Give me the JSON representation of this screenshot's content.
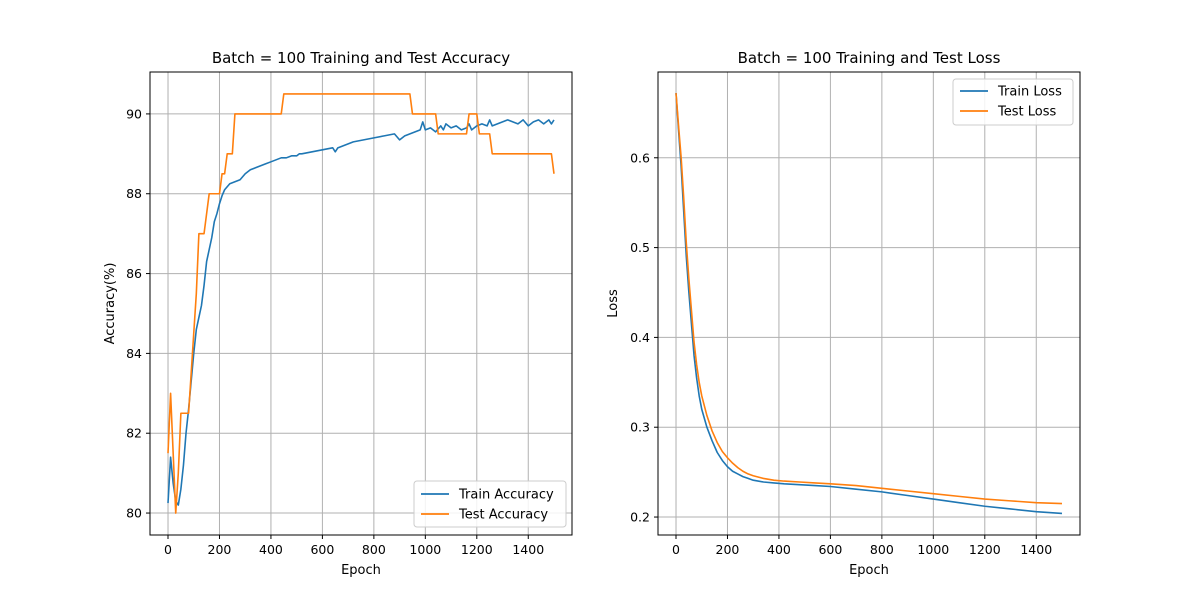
{
  "chart_data": [
    {
      "type": "line",
      "title": "Batch = 100 Training and Test Accuracy",
      "xlabel": "Epoch",
      "ylabel": "Accuracy(%)",
      "xlim": [
        -70,
        1570
      ],
      "ylim": [
        79.45,
        91.05
      ],
      "xticks": [
        "0",
        "200",
        "400",
        "600",
        "800",
        "1000",
        "1200",
        "1400"
      ],
      "yticks": [
        "80",
        "82",
        "84",
        "86",
        "88",
        "90"
      ],
      "grid": true,
      "legend": "lower right",
      "series": [
        {
          "name": "Train Accuracy",
          "color": "#1f77b4",
          "x": [
            0,
            10,
            20,
            30,
            40,
            50,
            60,
            70,
            80,
            90,
            100,
            110,
            120,
            130,
            140,
            150,
            160,
            170,
            180,
            190,
            200,
            210,
            220,
            240,
            260,
            280,
            300,
            320,
            340,
            360,
            380,
            400,
            420,
            440,
            460,
            480,
            500,
            510,
            520,
            560,
            600,
            640,
            650,
            660,
            680,
            700,
            720,
            760,
            800,
            840,
            880,
            900,
            920,
            940,
            960,
            980,
            990,
            1000,
            1020,
            1040,
            1060,
            1070,
            1080,
            1100,
            1120,
            1140,
            1160,
            1170,
            1180,
            1200,
            1220,
            1240,
            1250,
            1260,
            1280,
            1300,
            1320,
            1340,
            1360,
            1380,
            1400,
            1420,
            1440,
            1460,
            1480,
            1490,
            1500
          ],
          "y": [
            80.25,
            81.4,
            80.75,
            80.3,
            80.2,
            80.6,
            81.2,
            82.0,
            82.6,
            83.3,
            84.0,
            84.6,
            84.9,
            85.2,
            85.7,
            86.3,
            86.6,
            86.9,
            87.3,
            87.5,
            87.75,
            87.95,
            88.1,
            88.25,
            88.3,
            88.35,
            88.5,
            88.6,
            88.65,
            88.7,
            88.75,
            88.8,
            88.85,
            88.9,
            88.9,
            88.95,
            88.95,
            89.0,
            89.0,
            89.05,
            89.1,
            89.15,
            89.05,
            89.15,
            89.2,
            89.25,
            89.3,
            89.35,
            89.4,
            89.45,
            89.5,
            89.35,
            89.45,
            89.5,
            89.55,
            89.6,
            89.8,
            89.6,
            89.65,
            89.55,
            89.7,
            89.6,
            89.75,
            89.65,
            89.7,
            89.6,
            89.65,
            89.75,
            89.6,
            89.7,
            89.75,
            89.7,
            89.85,
            89.7,
            89.75,
            89.8,
            89.85,
            89.8,
            89.75,
            89.85,
            89.7,
            89.8,
            89.85,
            89.75,
            89.85,
            89.75,
            89.85
          ]
        },
        {
          "name": "Test Accuracy",
          "color": "#ff7f0e",
          "x": [
            0,
            10,
            20,
            30,
            40,
            50,
            60,
            70,
            80,
            90,
            100,
            110,
            120,
            130,
            140,
            150,
            160,
            170,
            180,
            190,
            200,
            210,
            220,
            230,
            240,
            250,
            260,
            270,
            280,
            290,
            300,
            320,
            340,
            360,
            380,
            400,
            420,
            440,
            450,
            460,
            500,
            600,
            700,
            800,
            900,
            940,
            950,
            990,
            1000,
            1040,
            1050,
            1100,
            1150,
            1160,
            1170,
            1200,
            1210,
            1250,
            1260,
            1300,
            1400,
            1490,
            1500
          ],
          "y": [
            81.5,
            83.0,
            81.5,
            80.0,
            81.0,
            82.5,
            82.5,
            82.5,
            82.5,
            83.5,
            84.5,
            85.5,
            87.0,
            87.0,
            87.0,
            87.5,
            88.0,
            88.0,
            88.0,
            88.0,
            88.0,
            88.5,
            88.5,
            89.0,
            89.0,
            89.0,
            90.0,
            90.0,
            90.0,
            90.0,
            90.0,
            90.0,
            90.0,
            90.0,
            90.0,
            90.0,
            90.0,
            90.0,
            90.5,
            90.5,
            90.5,
            90.5,
            90.5,
            90.5,
            90.5,
            90.5,
            90.0,
            90.0,
            90.0,
            90.0,
            89.5,
            89.5,
            89.5,
            89.5,
            90.0,
            90.0,
            89.5,
            89.5,
            89.0,
            89.0,
            89.0,
            89.0,
            88.5
          ]
        }
      ]
    },
    {
      "type": "line",
      "title": "Batch = 100 Training and Test Loss",
      "xlabel": "Epoch",
      "ylabel": "Loss",
      "xlim": [
        -70,
        1570
      ],
      "ylim": [
        0.18,
        0.6955
      ],
      "xticks": [
        "0",
        "200",
        "400",
        "600",
        "800",
        "1000",
        "1200",
        "1400"
      ],
      "yticks": [
        "0.2",
        "0.3",
        "0.4",
        "0.5",
        "0.6"
      ],
      "grid": true,
      "legend": "upper right",
      "series": [
        {
          "name": "Train Loss",
          "color": "#1f77b4",
          "x": [
            0,
            10,
            20,
            30,
            40,
            50,
            60,
            70,
            80,
            90,
            100,
            120,
            140,
            160,
            180,
            200,
            220,
            240,
            260,
            280,
            300,
            340,
            380,
            420,
            480,
            540,
            600,
            700,
            800,
            900,
            1000,
            1100,
            1200,
            1300,
            1400,
            1500
          ],
          "y": [
            0.672,
            0.63,
            0.59,
            0.54,
            0.49,
            0.45,
            0.415,
            0.38,
            0.355,
            0.335,
            0.32,
            0.3,
            0.285,
            0.272,
            0.263,
            0.256,
            0.251,
            0.248,
            0.245,
            0.243,
            0.241,
            0.239,
            0.238,
            0.237,
            0.236,
            0.235,
            0.234,
            0.231,
            0.228,
            0.224,
            0.22,
            0.216,
            0.212,
            0.209,
            0.206,
            0.204
          ]
        },
        {
          "name": "Test Loss",
          "color": "#ff7f0e",
          "x": [
            0,
            10,
            20,
            30,
            40,
            50,
            60,
            70,
            80,
            90,
            100,
            120,
            140,
            160,
            180,
            200,
            220,
            240,
            260,
            280,
            300,
            340,
            380,
            420,
            480,
            540,
            600,
            700,
            800,
            900,
            1000,
            1100,
            1200,
            1300,
            1400,
            1500
          ],
          "y": [
            0.672,
            0.635,
            0.6,
            0.555,
            0.505,
            0.465,
            0.43,
            0.395,
            0.37,
            0.35,
            0.335,
            0.313,
            0.296,
            0.283,
            0.273,
            0.266,
            0.26,
            0.255,
            0.251,
            0.248,
            0.246,
            0.243,
            0.241,
            0.24,
            0.239,
            0.238,
            0.237,
            0.235,
            0.232,
            0.229,
            0.226,
            0.223,
            0.22,
            0.218,
            0.216,
            0.215
          ]
        }
      ]
    }
  ]
}
